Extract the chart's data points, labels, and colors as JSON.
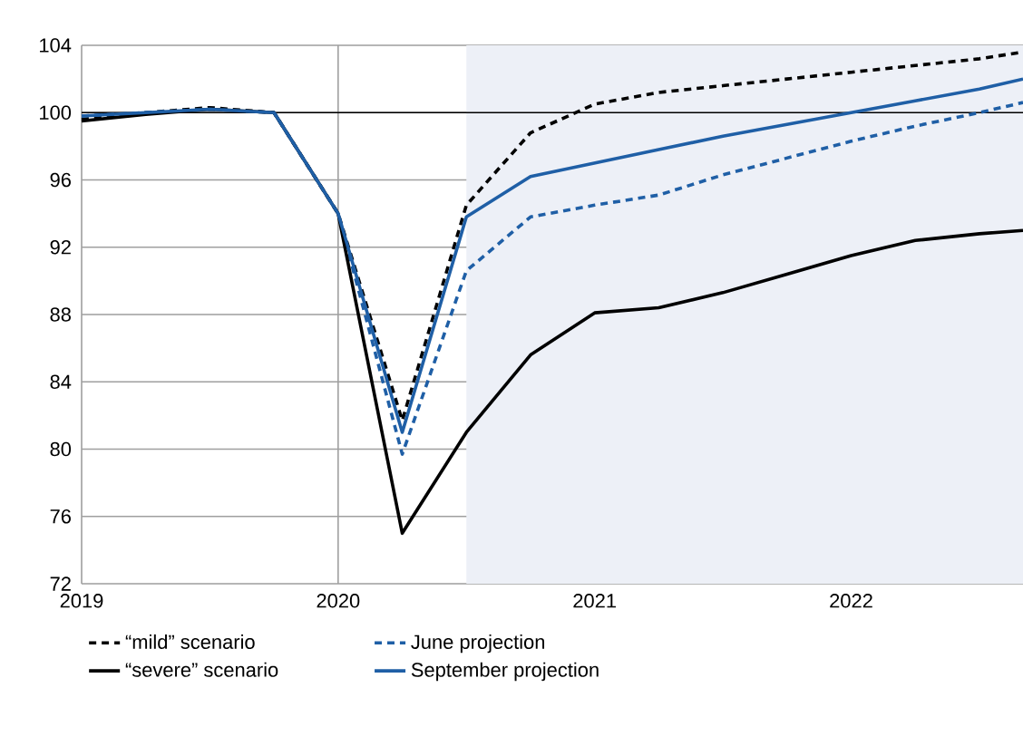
{
  "chart_data": {
    "type": "line",
    "x": [
      2019,
      2019.25,
      2019.5,
      2019.75,
      2020,
      2020.25,
      2020.5,
      2020.75,
      2021,
      2021.25,
      2021.5,
      2021.75,
      2022,
      2022.25,
      2022.5,
      2022.67
    ],
    "series": [
      {
        "name": "“mild” scenario",
        "color": "#000000",
        "line_style": "dashed",
        "values": [
          99.6,
          100.0,
          100.3,
          100.0,
          94.0,
          81.7,
          94.5,
          98.8,
          100.5,
          101.2,
          101.6,
          102.0,
          102.4,
          102.8,
          103.2,
          103.6
        ]
      },
      {
        "name": "June projection",
        "color": "#1f5fa6",
        "line_style": "dashed",
        "values": [
          99.8,
          100.0,
          100.2,
          100.0,
          94.0,
          79.7,
          90.6,
          93.8,
          94.5,
          95.1,
          96.3,
          97.3,
          98.3,
          99.2,
          100.0,
          100.6
        ]
      },
      {
        "name": "“severe” scenario",
        "color": "#000000",
        "line_style": "solid",
        "values": [
          99.5,
          99.9,
          100.2,
          100.0,
          94.0,
          75.0,
          81.0,
          85.6,
          88.1,
          88.4,
          89.3,
          90.4,
          91.5,
          92.4,
          92.8,
          93.0
        ]
      },
      {
        "name": "September projection",
        "color": "#1f5fa6",
        "line_style": "solid",
        "values": [
          99.8,
          100.0,
          100.2,
          100.0,
          94.0,
          81.0,
          93.8,
          96.2,
          97.0,
          97.8,
          98.6,
          99.3,
          100.0,
          100.7,
          101.4,
          102.0
        ]
      }
    ],
    "xlim": [
      2019,
      2022.67
    ],
    "xticks": [
      2019,
      2020,
      2021,
      2022
    ],
    "ylim": [
      72,
      104
    ],
    "yticks": [
      72,
      76,
      80,
      84,
      88,
      92,
      96,
      100,
      104
    ],
    "grid": true,
    "legend": "bottom",
    "marker": "none",
    "ref_lines": [
      {
        "axis": "y",
        "value": 100,
        "color": "#000000"
      }
    ],
    "bands": [
      {
        "axis": "x",
        "from": 2020.5,
        "to": 2022.67,
        "color": "#edf0f7"
      }
    ]
  }
}
